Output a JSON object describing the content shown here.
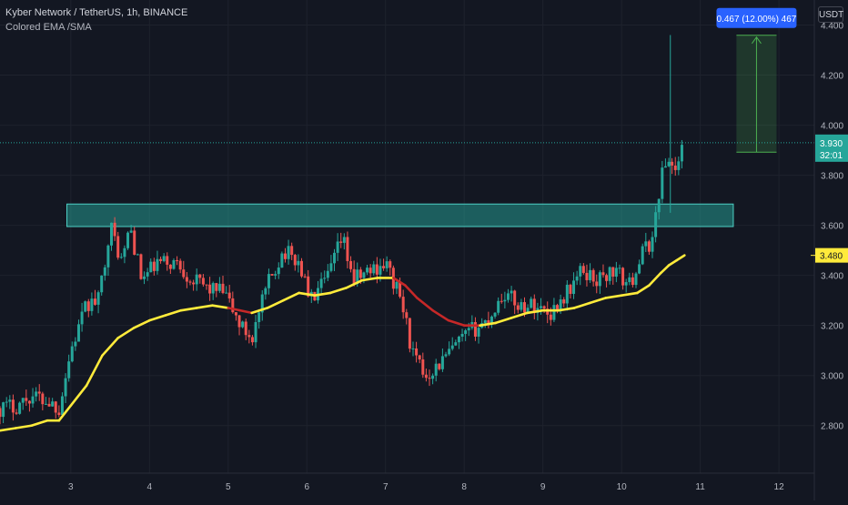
{
  "header": {
    "title": "Kyber Network / TetherUS, 1h, BINANCE",
    "indicator": "Colored EMA /SMA"
  },
  "currency_badge": "USDT",
  "measure_label": "0.467 (12.00%) 467",
  "last_price": {
    "value": "3.930",
    "countdown": "32:01"
  },
  "ema_price": "3.480",
  "colors": {
    "background": "#131722",
    "up": "#26a69a",
    "down": "#ef5350",
    "ema_up": "#ffeb3b",
    "ema_down": "#c62828",
    "zone": "#26a69a",
    "measure": "#4caf50",
    "measure_label_bg": "#2962ff",
    "ema_badge": "#ffeb3b"
  },
  "chart_data": {
    "type": "candlestick",
    "title": "Kyber Network / TetherUS, 1h, BINANCE",
    "x_ticks": [
      "3",
      "4",
      "5",
      "6",
      "7",
      "8",
      "9",
      "10",
      "11",
      "12"
    ],
    "x_tick_values": [
      3,
      4,
      5,
      6,
      7,
      8,
      9,
      10,
      11,
      12
    ],
    "y_ticks": [
      "2.800",
      "3.000",
      "3.200",
      "3.400",
      "3.600",
      "3.800",
      "4.000",
      "4.200",
      "4.400"
    ],
    "y_tick_values": [
      2.8,
      3.0,
      3.2,
      3.4,
      3.6,
      3.8,
      4.0,
      4.2,
      4.4
    ],
    "xlim": [
      2.1,
      12.45
    ],
    "ylim": [
      2.61,
      4.5
    ],
    "close_path": [
      [
        2.1,
        2.87
      ],
      [
        2.3,
        2.88
      ],
      [
        2.5,
        2.92
      ],
      [
        2.7,
        2.9
      ],
      [
        2.85,
        2.87
      ],
      [
        3.0,
        3.1
      ],
      [
        3.2,
        3.28
      ],
      [
        3.35,
        3.3
      ],
      [
        3.5,
        3.6
      ],
      [
        3.65,
        3.45
      ],
      [
        3.75,
        3.6
      ],
      [
        3.9,
        3.38
      ],
      [
        4.1,
        3.45
      ],
      [
        4.35,
        3.45
      ],
      [
        4.55,
        3.38
      ],
      [
        4.75,
        3.35
      ],
      [
        4.95,
        3.33
      ],
      [
        5.15,
        3.2
      ],
      [
        5.3,
        3.15
      ],
      [
        5.5,
        3.36
      ],
      [
        5.7,
        3.5
      ],
      [
        5.9,
        3.45
      ],
      [
        6.05,
        3.3
      ],
      [
        6.25,
        3.38
      ],
      [
        6.45,
        3.55
      ],
      [
        6.6,
        3.38
      ],
      [
        6.8,
        3.42
      ],
      [
        7.0,
        3.45
      ],
      [
        7.2,
        3.3
      ],
      [
        7.35,
        3.08
      ],
      [
        7.5,
        3.0
      ],
      [
        7.7,
        3.05
      ],
      [
        7.9,
        3.12
      ],
      [
        8.1,
        3.18
      ],
      [
        8.3,
        3.22
      ],
      [
        8.5,
        3.33
      ],
      [
        8.7,
        3.28
      ],
      [
        8.9,
        3.28
      ],
      [
        9.1,
        3.25
      ],
      [
        9.3,
        3.33
      ],
      [
        9.5,
        3.42
      ],
      [
        9.7,
        3.38
      ],
      [
        9.9,
        3.42
      ],
      [
        10.1,
        3.36
      ],
      [
        10.25,
        3.48
      ],
      [
        10.4,
        3.55
      ],
      [
        10.5,
        3.8
      ],
      [
        10.6,
        3.86
      ],
      [
        10.7,
        3.82
      ],
      [
        10.8,
        3.93
      ]
    ],
    "ema_path": [
      [
        2.1,
        2.78
      ],
      [
        2.3,
        2.79
      ],
      [
        2.5,
        2.8
      ],
      [
        2.7,
        2.82
      ],
      [
        2.85,
        2.82
      ],
      [
        3.0,
        2.88
      ],
      [
        3.2,
        2.96
      ],
      [
        3.4,
        3.08
      ],
      [
        3.6,
        3.15
      ],
      [
        3.8,
        3.19
      ],
      [
        4.0,
        3.22
      ],
      [
        4.2,
        3.24
      ],
      [
        4.4,
        3.26
      ],
      [
        4.6,
        3.27
      ],
      [
        4.8,
        3.28
      ],
      [
        5.0,
        3.27
      ],
      [
        5.15,
        3.26
      ],
      [
        5.3,
        3.25
      ],
      [
        5.5,
        3.27
      ],
      [
        5.7,
        3.3
      ],
      [
        5.9,
        3.33
      ],
      [
        6.1,
        3.32
      ],
      [
        6.3,
        3.33
      ],
      [
        6.5,
        3.35
      ],
      [
        6.7,
        3.38
      ],
      [
        6.9,
        3.39
      ],
      [
        7.1,
        3.39
      ],
      [
        7.25,
        3.36
      ],
      [
        7.4,
        3.31
      ],
      [
        7.6,
        3.26
      ],
      [
        7.8,
        3.22
      ],
      [
        8.0,
        3.2
      ],
      [
        8.2,
        3.2
      ],
      [
        8.4,
        3.21
      ],
      [
        8.6,
        3.23
      ],
      [
        8.8,
        3.25
      ],
      [
        9.0,
        3.26
      ],
      [
        9.2,
        3.26
      ],
      [
        9.4,
        3.27
      ],
      [
        9.6,
        3.29
      ],
      [
        9.8,
        3.31
      ],
      [
        10.0,
        3.32
      ],
      [
        10.2,
        3.33
      ],
      [
        10.35,
        3.36
      ],
      [
        10.5,
        3.41
      ],
      [
        10.6,
        3.44
      ],
      [
        10.7,
        3.46
      ],
      [
        10.8,
        3.48
      ]
    ],
    "ema_down_ranges": [
      [
        5.0,
        5.3
      ],
      [
        7.1,
        8.15
      ]
    ],
    "zone": {
      "x_start": 2.95,
      "x_end": 11.42,
      "y_low": 3.595,
      "y_high": 3.685
    },
    "measure": {
      "x_start": 11.46,
      "x_end": 11.97,
      "y_from": 3.892,
      "y_to": 4.359
    },
    "spike": {
      "x": 10.62,
      "high": 4.36,
      "low": 3.65
    },
    "last_price_value": 3.93,
    "ema_value": 3.48
  }
}
